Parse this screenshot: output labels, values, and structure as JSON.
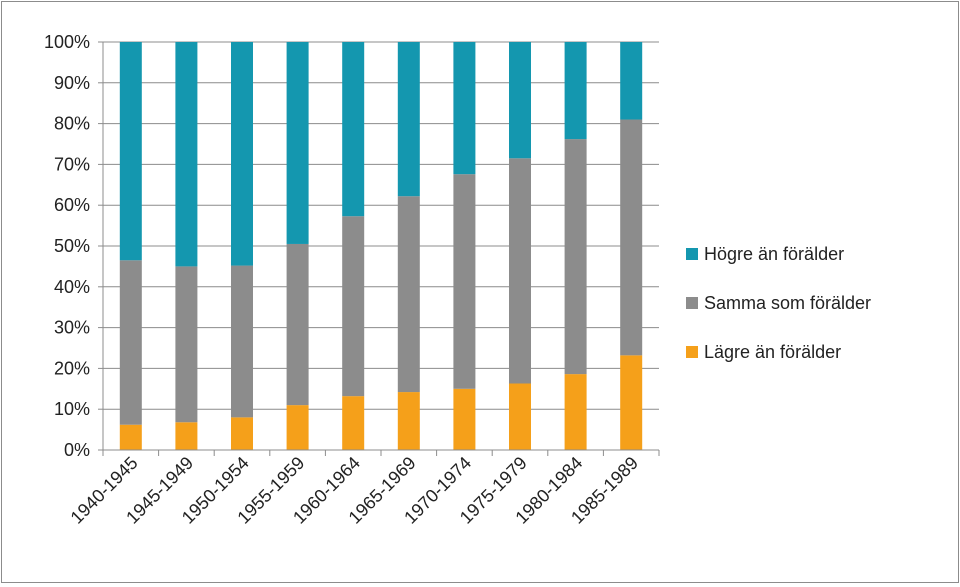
{
  "chart_data": {
    "type": "bar",
    "stacked": true,
    "categories": [
      "1940-1945",
      "1945-1949",
      "1950-1954",
      "1955-1959",
      "1960-1964",
      "1965-1969",
      "1970-1974",
      "1975-1979",
      "1980-1984",
      "1985-1989"
    ],
    "series": [
      {
        "name": "Lägre än förälder",
        "color": "#F5A01A",
        "values": [
          6.2,
          6.8,
          8.0,
          11.0,
          13.2,
          14.2,
          15.0,
          16.3,
          18.6,
          23.2
        ]
      },
      {
        "name": "Samma som förälder",
        "color": "#8C8C8C",
        "values": [
          40.3,
          38.2,
          37.2,
          39.5,
          44.1,
          48.0,
          52.6,
          55.2,
          57.6,
          57.8
        ]
      },
      {
        "name": "Högre än förälder",
        "color": "#1497AF",
        "values": [
          53.5,
          55.0,
          54.8,
          49.5,
          42.7,
          37.8,
          32.4,
          28.5,
          23.8,
          19.0
        ]
      }
    ],
    "legend_order": [
      2,
      1,
      0
    ],
    "yticks": [
      "0%",
      "10%",
      "20%",
      "30%",
      "40%",
      "50%",
      "60%",
      "70%",
      "80%",
      "90%",
      "100%"
    ],
    "ylim": [
      0,
      100
    ],
    "grid": true,
    "legend_position": "right"
  }
}
